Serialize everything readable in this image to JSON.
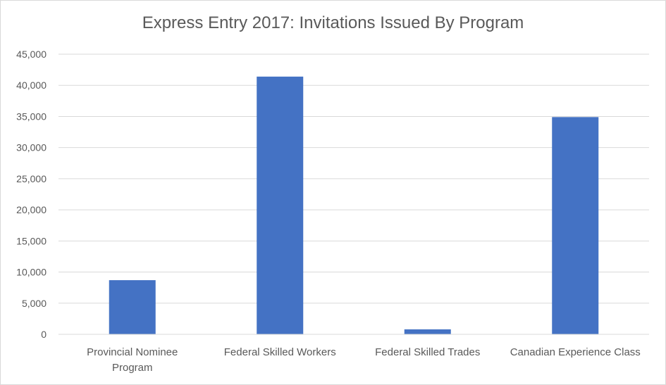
{
  "chart_data": {
    "type": "bar",
    "title": "Express Entry 2017: Invitations Issued By Program",
    "categories": [
      [
        "Provincial Nominee",
        "Program"
      ],
      [
        "Federal Skilled Workers"
      ],
      [
        "Federal Skilled Trades"
      ],
      [
        "Canadian Experience Class"
      ]
    ],
    "series": [
      {
        "values": [
          8700,
          41400,
          800,
          34900
        ]
      }
    ],
    "ylim": [
      0,
      45000
    ],
    "ytick_step": 5000,
    "ytick_labels": [
      "0",
      "5,000",
      "10,000",
      "15,000",
      "20,000",
      "25,000",
      "30,000",
      "35,000",
      "40,000",
      "45,000"
    ],
    "grid": true,
    "legend": "none",
    "bar_color": "#4472c4",
    "grid_color": "#d9d9d9",
    "xlabel": "",
    "ylabel": ""
  }
}
